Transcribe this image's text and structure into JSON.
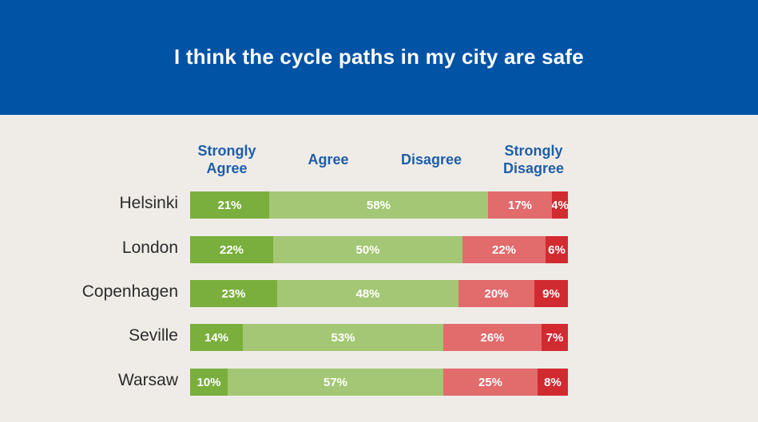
{
  "header": {
    "title": "I think the cycle paths in my city are safe"
  },
  "colors": {
    "header_bg": "#0053a5",
    "background": "#efece8",
    "strongly_agree": "#7aaf3d",
    "agree": "#a3c774",
    "disagree": "#e26b6c",
    "strongly_disagree": "#d12a31",
    "legend_text": "#1f5ea8"
  },
  "chart_data": {
    "type": "bar",
    "orientation": "horizontal",
    "stacked": true,
    "title": "I think the cycle paths in my city are safe",
    "categories": [
      "Helsinki",
      "London",
      "Copenhagen",
      "Seville",
      "Warsaw"
    ],
    "series": [
      {
        "name": "Strongly Agree",
        "name_lines": [
          "Strongly",
          "Agree"
        ],
        "values": [
          21,
          22,
          23,
          14,
          10
        ],
        "labels": [
          "21%",
          "22%",
          "23%",
          "14%",
          "10%"
        ]
      },
      {
        "name": "Agree",
        "name_lines": [
          "Agree"
        ],
        "values": [
          58,
          50,
          48,
          53,
          57
        ],
        "labels": [
          "58%",
          "50%",
          "48%",
          "53%",
          "57%"
        ]
      },
      {
        "name": "Disagree",
        "name_lines": [
          "Disagree"
        ],
        "values": [
          17,
          22,
          20,
          26,
          25
        ],
        "labels": [
          "17%",
          "22%",
          "20%",
          "26%",
          "25%"
        ]
      },
      {
        "name": "Strongly Disagree",
        "name_lines": [
          "Strongly",
          "Disagree"
        ],
        "values": [
          4,
          6,
          9,
          7,
          8
        ],
        "labels": [
          "4%",
          "6%",
          "9%",
          "7%",
          "8%"
        ]
      }
    ],
    "xlim": [
      0,
      100
    ],
    "legend": "top"
  }
}
